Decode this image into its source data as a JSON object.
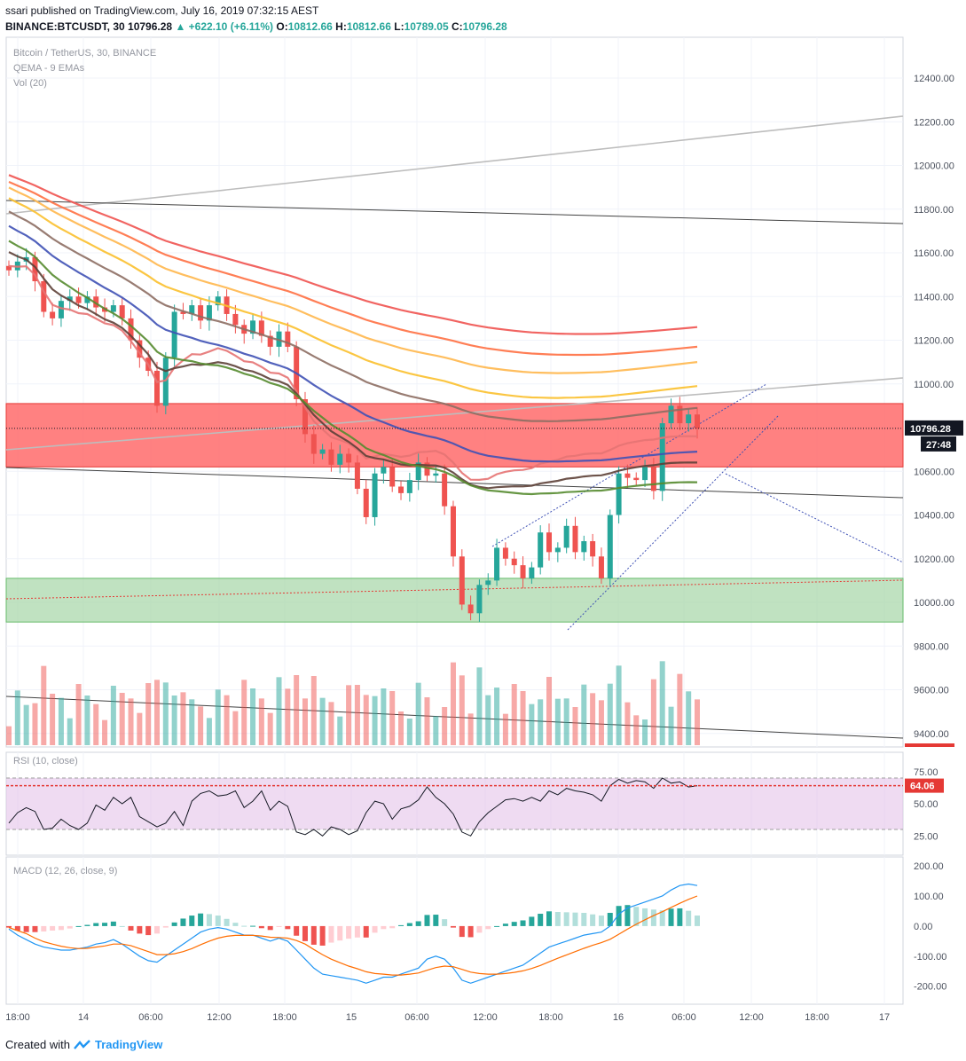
{
  "header": {
    "published": "ssari published on TradingView.com, July 16, 2019 07:32:15 AEST",
    "symbol": "BINANCE:BTCUSDT, 30",
    "last": "10796.28",
    "change": "▲ +622.10 (+6.11%)",
    "o_label": "O:",
    "o": "10812.66",
    "h_label": "H:",
    "h": "10812.66",
    "l_label": "L:",
    "l": "10789.05",
    "c_label": "C:",
    "c": "10796.28"
  },
  "legend": {
    "title": "Bitcoin / TetherUS, 30, BINANCE",
    "ema": "QEMA - 9 EMAs",
    "vol": "Vol (20)",
    "rsi": "RSI (10, close)",
    "macd": "MACD (12, 26, close, 9)"
  },
  "price_badge": "10796.28",
  "countdown_badge": "27:48",
  "rsi_badge": "64.06",
  "footer": {
    "created": "Created with",
    "brand": "TradingView"
  },
  "colors": {
    "up": "#26a69a",
    "down": "#ef5350",
    "resistance_zone": "#ff6b6b",
    "support_zone": "#a5d6a7",
    "rsi_band": "#e1bee7"
  },
  "chart_data": [
    {
      "type": "candlestick",
      "title": "Bitcoin / TetherUS, 30, BINANCE",
      "y_ticks": [
        "12400.00",
        "12200.00",
        "12000.00",
        "11800.00",
        "11600.00",
        "11400.00",
        "11200.00",
        "11000.00",
        "10800.00",
        "10600.00",
        "10400.00",
        "10200.00",
        "10000.00",
        "9800.00",
        "9600.00",
        "9400.00"
      ],
      "x_ticks": [
        "18:00",
        "14",
        "06:00",
        "12:00",
        "18:00",
        "15",
        "06:00",
        "12:00",
        "18:00",
        "16",
        "06:00",
        "12:00",
        "18:00",
        "17"
      ],
      "ylim": [
        9350,
        12550
      ],
      "zones": [
        {
          "name": "resistance",
          "from": 10620,
          "to": 10910
        },
        {
          "name": "support",
          "from": 9910,
          "to": 10110
        }
      ],
      "close_path": [
        11520,
        11560,
        11580,
        11470,
        11330,
        11300,
        11380,
        11400,
        11370,
        11400,
        11350,
        11330,
        11360,
        11300,
        11200,
        11120,
        11060,
        10900,
        11120,
        11330,
        11320,
        11360,
        11290,
        11360,
        11400,
        11320,
        11270,
        11230,
        11290,
        11220,
        11170,
        11240,
        11170,
        10930,
        10770,
        10680,
        10700,
        10630,
        10680,
        10640,
        10520,
        10390,
        10590,
        10620,
        10530,
        10500,
        10560,
        10640,
        10580,
        10590,
        10440,
        10210,
        9990,
        9950,
        10080,
        10100,
        10250,
        10200,
        10170,
        10110,
        10160,
        10320,
        10230,
        10250,
        10350,
        10230,
        10280,
        10210,
        10110,
        10400,
        10590,
        10570,
        10560,
        10620,
        10510,
        10820,
        10900,
        10820,
        10860,
        10796.28
      ],
      "ema_values": [
        {
          "color": "#e57373",
          "last": 10760
        },
        {
          "color": "#5d4037",
          "last": 10640
        },
        {
          "color": "#558b2f",
          "last": 10550
        },
        {
          "color": "#3f51b5",
          "last": 10690
        },
        {
          "color": "#8d6e63",
          "last": 10890
        },
        {
          "color": "#fbc02d",
          "last": 10990
        },
        {
          "color": "#ffb74d",
          "last": 11100
        },
        {
          "color": "#ff7043",
          "last": 11170
        },
        {
          "color": "#ef5350",
          "last": 11260
        }
      ],
      "last_price": 10796.28
    },
    {
      "type": "line",
      "title": "RSI (10, close)",
      "y_ticks": [
        "75.00",
        "50.00",
        "25.00"
      ],
      "ylim": [
        10,
        90
      ],
      "band": [
        30,
        70
      ],
      "last": 64.06,
      "values": [
        35,
        43,
        47,
        44,
        30,
        31,
        38,
        33,
        30,
        35,
        49,
        45,
        55,
        50,
        55,
        40,
        36,
        32,
        35,
        44,
        33,
        52,
        58,
        60,
        56,
        57,
        60,
        47,
        52,
        60,
        45,
        52,
        48,
        28,
        26,
        30,
        25,
        32,
        30,
        26,
        29,
        43,
        52,
        50,
        38,
        46,
        48,
        53,
        63,
        55,
        50,
        42,
        28,
        25,
        36,
        43,
        48,
        53,
        54,
        52,
        55,
        52,
        60,
        57,
        62,
        60,
        59,
        57,
        52,
        64,
        69,
        66,
        68,
        67,
        62,
        70,
        66,
        67,
        63,
        64
      ]
    },
    {
      "type": "bar+line",
      "title": "MACD (12, 26, close, 9)",
      "y_ticks": [
        "200.00",
        "100.00",
        "0.00",
        "-100.00",
        "-200.00"
      ],
      "ylim": [
        -260,
        230
      ],
      "macd": [
        -10,
        -30,
        -45,
        -60,
        -70,
        -75,
        -80,
        -80,
        -75,
        -70,
        -60,
        -55,
        -45,
        -60,
        -80,
        -100,
        -115,
        -120,
        -100,
        -80,
        -60,
        -40,
        -20,
        -10,
        -5,
        -10,
        -20,
        -30,
        -30,
        -40,
        -50,
        -40,
        -50,
        -80,
        -110,
        -140,
        -160,
        -165,
        -170,
        -175,
        -180,
        -190,
        -180,
        -170,
        -170,
        -160,
        -150,
        -140,
        -110,
        -100,
        -110,
        -140,
        -180,
        -190,
        -180,
        -170,
        -160,
        -150,
        -140,
        -130,
        -110,
        -90,
        -70,
        -60,
        -50,
        -40,
        -30,
        -25,
        -20,
        0,
        40,
        60,
        70,
        80,
        90,
        100,
        120,
        135,
        140,
        135
      ],
      "signal": [
        -5,
        -15,
        -25,
        -40,
        -52,
        -60,
        -67,
        -72,
        -75,
        -74,
        -70,
        -66,
        -60,
        -60,
        -65,
        -75,
        -85,
        -95,
        -95,
        -92,
        -85,
        -75,
        -62,
        -50,
        -40,
        -34,
        -31,
        -31,
        -31,
        -33,
        -37,
        -38,
        -40,
        -48,
        -60,
        -78,
        -95,
        -110,
        -122,
        -133,
        -142,
        -152,
        -158,
        -160,
        -163,
        -163,
        -160,
        -156,
        -147,
        -138,
        -133,
        -135,
        -144,
        -153,
        -158,
        -160,
        -160,
        -158,
        -154,
        -149,
        -141,
        -131,
        -119,
        -107,
        -96,
        -85,
        -74,
        -64,
        -55,
        -44,
        -27,
        -10,
        6,
        21,
        35,
        48,
        62,
        76,
        89,
        100
      ]
    }
  ]
}
